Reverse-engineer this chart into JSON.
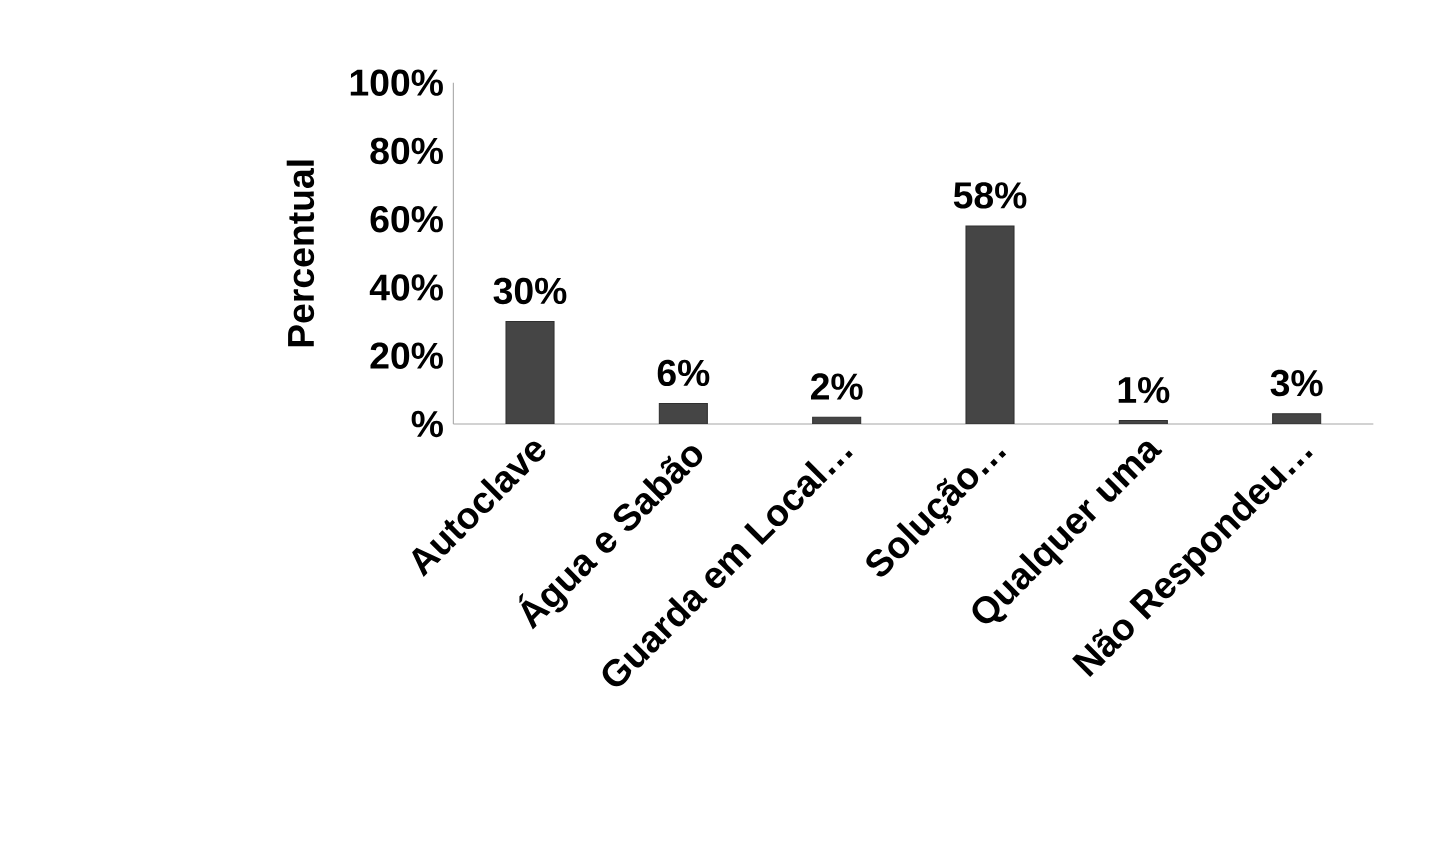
{
  "chart_data": {
    "type": "bar",
    "ylabel": "Percentual",
    "categories": [
      "Autoclave",
      "Água e Sabão",
      "Guarda em Local…",
      "Solução…",
      "Qualquer uma",
      "Não Respondeu…"
    ],
    "values": [
      30,
      6,
      2,
      58,
      1,
      3
    ],
    "value_labels": [
      "30%",
      "6%",
      "2%",
      "58%",
      "1%",
      "3%"
    ],
    "color": "#454545",
    "ylim": [
      0,
      100
    ],
    "yticks": [
      {
        "value": 0,
        "label": "%"
      },
      {
        "value": 20,
        "label": "20%"
      },
      {
        "value": 40,
        "label": "40%"
      },
      {
        "value": 60,
        "label": "60%"
      },
      {
        "value": 80,
        "label": "80%"
      },
      {
        "value": 100,
        "label": "100%"
      }
    ],
    "grid": false
  }
}
